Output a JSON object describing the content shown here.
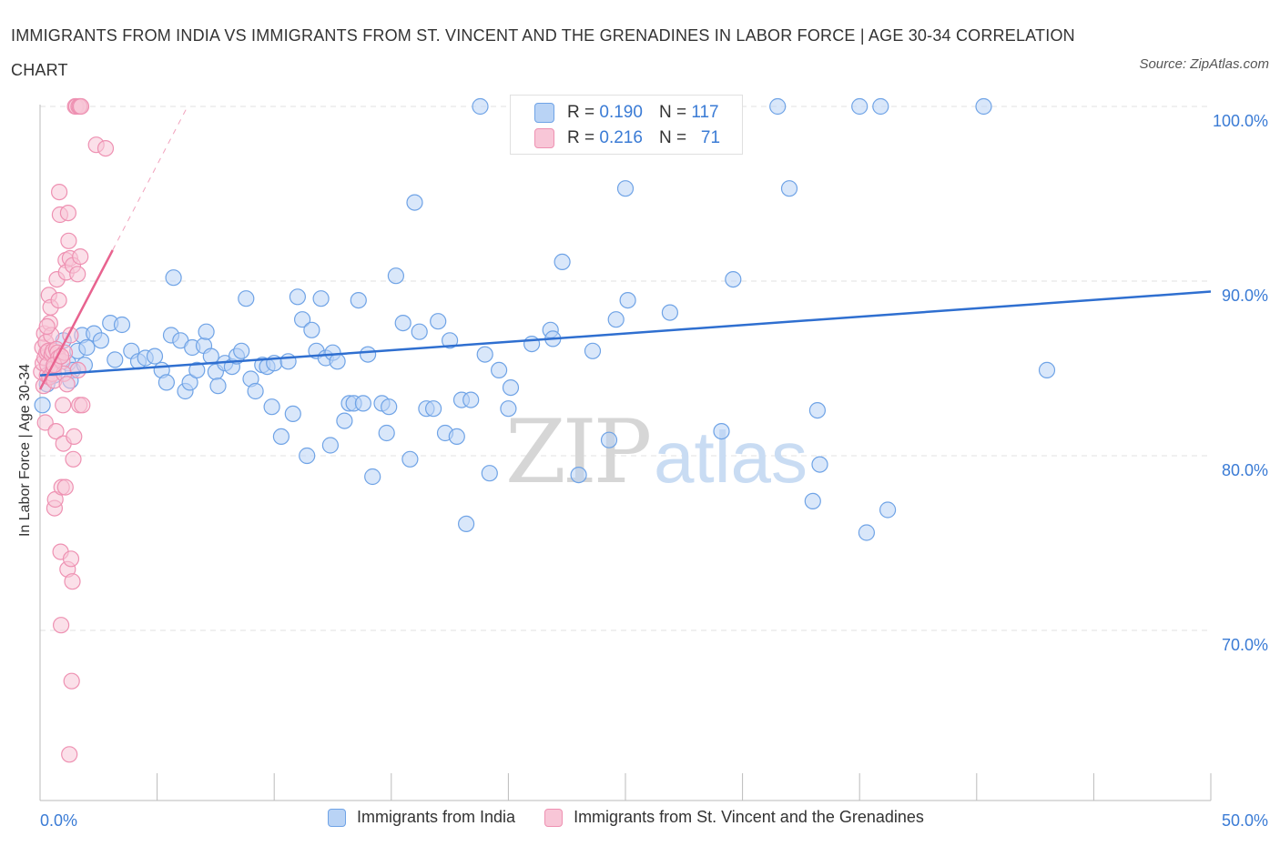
{
  "chart_data": {
    "type": "scatter",
    "title": "IMMIGRANTS FROM INDIA VS IMMIGRANTS FROM ST. VINCENT AND THE GRENADINES IN LABOR FORCE | AGE 30-34 CORRELATION CHART",
    "source": "Source: ZipAtlas.com",
    "watermark": "ZIPatlas",
    "ylabel": "In Labor Force | Age 30-34",
    "xlim": [
      0,
      50
    ],
    "ylim": [
      60,
      100
    ],
    "x_tick_labels": [
      "0.0%",
      "50.0%"
    ],
    "y_ticks": [
      100,
      90,
      80,
      70
    ],
    "y_tick_labels": [
      "100.0%",
      "90.0%",
      "80.0%",
      "70.0%"
    ],
    "grid": true,
    "legend_top": {
      "rows": [
        {
          "r_label": "R =",
          "r_value": "0.190",
          "n_label": "N =",
          "n_value": "117"
        },
        {
          "r_label": "R =",
          "r_value": "0.216",
          "n_label": "N =",
          "n_value": "71"
        }
      ]
    },
    "series": [
      {
        "name": "Immigrants from India",
        "color": "#6fa3e6",
        "fill": "#b9d3f5",
        "line_color": "#2f6fd0",
        "trend": {
          "x": [
            0,
            50
          ],
          "y": [
            84.6,
            89.4
          ]
        },
        "points": [
          [
            0.1,
            82.9
          ],
          [
            0.3,
            84.1
          ],
          [
            0.5,
            85.0
          ],
          [
            0.7,
            85.5
          ],
          [
            1.0,
            86.6
          ],
          [
            1.2,
            85.3
          ],
          [
            1.4,
            84.9
          ],
          [
            1.6,
            86.0
          ],
          [
            1.8,
            86.9
          ],
          [
            1.9,
            85.2
          ],
          [
            2.0,
            86.2
          ],
          [
            2.3,
            87.0
          ],
          [
            2.6,
            86.6
          ],
          [
            3.0,
            87.6
          ],
          [
            3.2,
            85.5
          ],
          [
            3.5,
            87.5
          ],
          [
            3.9,
            86.0
          ],
          [
            4.2,
            85.4
          ],
          [
            4.5,
            85.6
          ],
          [
            4.9,
            85.7
          ],
          [
            5.2,
            84.9
          ],
          [
            5.4,
            84.2
          ],
          [
            5.6,
            86.9
          ],
          [
            5.7,
            90.2
          ],
          [
            6.0,
            86.6
          ],
          [
            6.2,
            83.7
          ],
          [
            6.4,
            84.2
          ],
          [
            6.5,
            86.2
          ],
          [
            6.7,
            84.9
          ],
          [
            7.0,
            86.3
          ],
          [
            7.1,
            87.1
          ],
          [
            7.3,
            85.7
          ],
          [
            7.5,
            84.8
          ],
          [
            7.6,
            84.0
          ],
          [
            7.9,
            85.3
          ],
          [
            8.2,
            85.1
          ],
          [
            8.4,
            85.7
          ],
          [
            8.6,
            86.0
          ],
          [
            8.8,
            89.0
          ],
          [
            9.0,
            84.4
          ],
          [
            9.2,
            83.7
          ],
          [
            9.5,
            85.2
          ],
          [
            9.7,
            85.1
          ],
          [
            9.9,
            82.8
          ],
          [
            10.0,
            85.3
          ],
          [
            10.3,
            81.1
          ],
          [
            10.6,
            85.4
          ],
          [
            10.8,
            82.4
          ],
          [
            11.0,
            89.1
          ],
          [
            11.2,
            87.8
          ],
          [
            11.4,
            80.0
          ],
          [
            11.6,
            87.2
          ],
          [
            11.8,
            86.0
          ],
          [
            12.0,
            89.0
          ],
          [
            12.2,
            85.6
          ],
          [
            12.4,
            80.6
          ],
          [
            12.5,
            85.9
          ],
          [
            12.7,
            85.4
          ],
          [
            13.0,
            82.0
          ],
          [
            13.2,
            83.0
          ],
          [
            13.4,
            83.0
          ],
          [
            13.6,
            88.9
          ],
          [
            13.8,
            83.0
          ],
          [
            14.0,
            85.8
          ],
          [
            14.2,
            78.8
          ],
          [
            14.6,
            83.0
          ],
          [
            14.8,
            81.3
          ],
          [
            14.9,
            82.8
          ],
          [
            15.2,
            90.3
          ],
          [
            15.5,
            87.6
          ],
          [
            15.8,
            79.8
          ],
          [
            16.0,
            94.5
          ],
          [
            16.2,
            87.1
          ],
          [
            16.5,
            82.7
          ],
          [
            16.8,
            82.7
          ],
          [
            17.0,
            87.7
          ],
          [
            17.3,
            81.3
          ],
          [
            17.5,
            86.6
          ],
          [
            17.8,
            81.1
          ],
          [
            18.0,
            83.2
          ],
          [
            18.2,
            76.1
          ],
          [
            18.4,
            83.2
          ],
          [
            18.8,
            100.0
          ],
          [
            19.0,
            85.8
          ],
          [
            19.2,
            79.0
          ],
          [
            19.6,
            84.9
          ],
          [
            20.0,
            82.7
          ],
          [
            20.1,
            83.9
          ],
          [
            20.5,
            100.0
          ],
          [
            21.0,
            86.4
          ],
          [
            21.8,
            87.2
          ],
          [
            21.9,
            86.7
          ],
          [
            22.3,
            91.1
          ],
          [
            23.0,
            78.9
          ],
          [
            23.6,
            86.0
          ],
          [
            24.3,
            80.9
          ],
          [
            24.6,
            87.8
          ],
          [
            25.0,
            95.3
          ],
          [
            25.1,
            88.9
          ],
          [
            26.5,
            100.0
          ],
          [
            26.9,
            88.2
          ],
          [
            28.4,
            97.8
          ],
          [
            29.1,
            81.4
          ],
          [
            29.6,
            90.1
          ],
          [
            31.5,
            100.0
          ],
          [
            32.0,
            95.3
          ],
          [
            33.0,
            77.4
          ],
          [
            33.2,
            82.6
          ],
          [
            33.3,
            79.5
          ],
          [
            35.0,
            100.0
          ],
          [
            35.3,
            75.6
          ],
          [
            35.9,
            100.0
          ],
          [
            36.2,
            76.9
          ],
          [
            40.3,
            100.0
          ],
          [
            43.0,
            84.9
          ],
          [
            0.6,
            84.6
          ],
          [
            1.3,
            84.3
          ]
        ]
      },
      {
        "name": "Immigrants from St. Vincent and the Grenadines",
        "color": "#ee91b2",
        "fill": "#f8c6d7",
        "line_color": "#e8638f",
        "trend": {
          "x": [
            0,
            6.3
          ],
          "y": [
            83.8,
            100.0
          ]
        },
        "trend_solid_to_x": 3.1,
        "points": [
          [
            0.05,
            84.8
          ],
          [
            0.1,
            86.2
          ],
          [
            0.12,
            85.3
          ],
          [
            0.15,
            84.0
          ],
          [
            0.18,
            87.0
          ],
          [
            0.2,
            85.6
          ],
          [
            0.22,
            81.9
          ],
          [
            0.25,
            86.5
          ],
          [
            0.28,
            85.9
          ],
          [
            0.3,
            84.6
          ],
          [
            0.32,
            85.2
          ],
          [
            0.35,
            86.0
          ],
          [
            0.38,
            89.2
          ],
          [
            0.4,
            84.5
          ],
          [
            0.42,
            87.6
          ],
          [
            0.45,
            88.5
          ],
          [
            0.48,
            86.9
          ],
          [
            0.5,
            85.8
          ],
          [
            0.52,
            84.7
          ],
          [
            0.55,
            86.0
          ],
          [
            0.58,
            85.0
          ],
          [
            0.6,
            84.3
          ],
          [
            0.62,
            77.0
          ],
          [
            0.65,
            77.5
          ],
          [
            0.68,
            81.4
          ],
          [
            0.7,
            86.1
          ],
          [
            0.72,
            90.1
          ],
          [
            0.75,
            85.9
          ],
          [
            0.78,
            85.6
          ],
          [
            0.8,
            88.9
          ],
          [
            0.82,
            95.1
          ],
          [
            0.85,
            93.8
          ],
          [
            0.88,
            74.5
          ],
          [
            0.9,
            70.3
          ],
          [
            0.92,
            78.2
          ],
          [
            0.95,
            85.4
          ],
          [
            0.98,
            82.9
          ],
          [
            1.0,
            80.7
          ],
          [
            1.02,
            84.7
          ],
          [
            1.05,
            85.9
          ],
          [
            1.08,
            78.2
          ],
          [
            1.1,
            91.2
          ],
          [
            1.12,
            90.5
          ],
          [
            1.15,
            84.1
          ],
          [
            1.18,
            73.5
          ],
          [
            1.2,
            93.9
          ],
          [
            1.22,
            92.3
          ],
          [
            1.25,
            62.9
          ],
          [
            1.28,
            91.3
          ],
          [
            1.3,
            86.9
          ],
          [
            1.32,
            74.1
          ],
          [
            1.35,
            67.1
          ],
          [
            1.38,
            72.8
          ],
          [
            1.4,
            90.9
          ],
          [
            1.42,
            79.8
          ],
          [
            1.45,
            81.1
          ],
          [
            1.5,
            100.0
          ],
          [
            1.55,
            100.0
          ],
          [
            1.6,
            90.4
          ],
          [
            1.62,
            84.9
          ],
          [
            1.65,
            100.0
          ],
          [
            1.68,
            82.9
          ],
          [
            1.7,
            100.0
          ],
          [
            1.72,
            91.4
          ],
          [
            1.75,
            100.0
          ],
          [
            1.8,
            82.9
          ],
          [
            2.4,
            97.8
          ],
          [
            2.8,
            97.6
          ],
          [
            0.3,
            87.4
          ],
          [
            0.6,
            85.2
          ],
          [
            0.9,
            85.7
          ]
        ]
      }
    ]
  },
  "legend_bottom": [
    "Immigrants from India",
    "Immigrants from St. Vincent and the Grenadines"
  ]
}
